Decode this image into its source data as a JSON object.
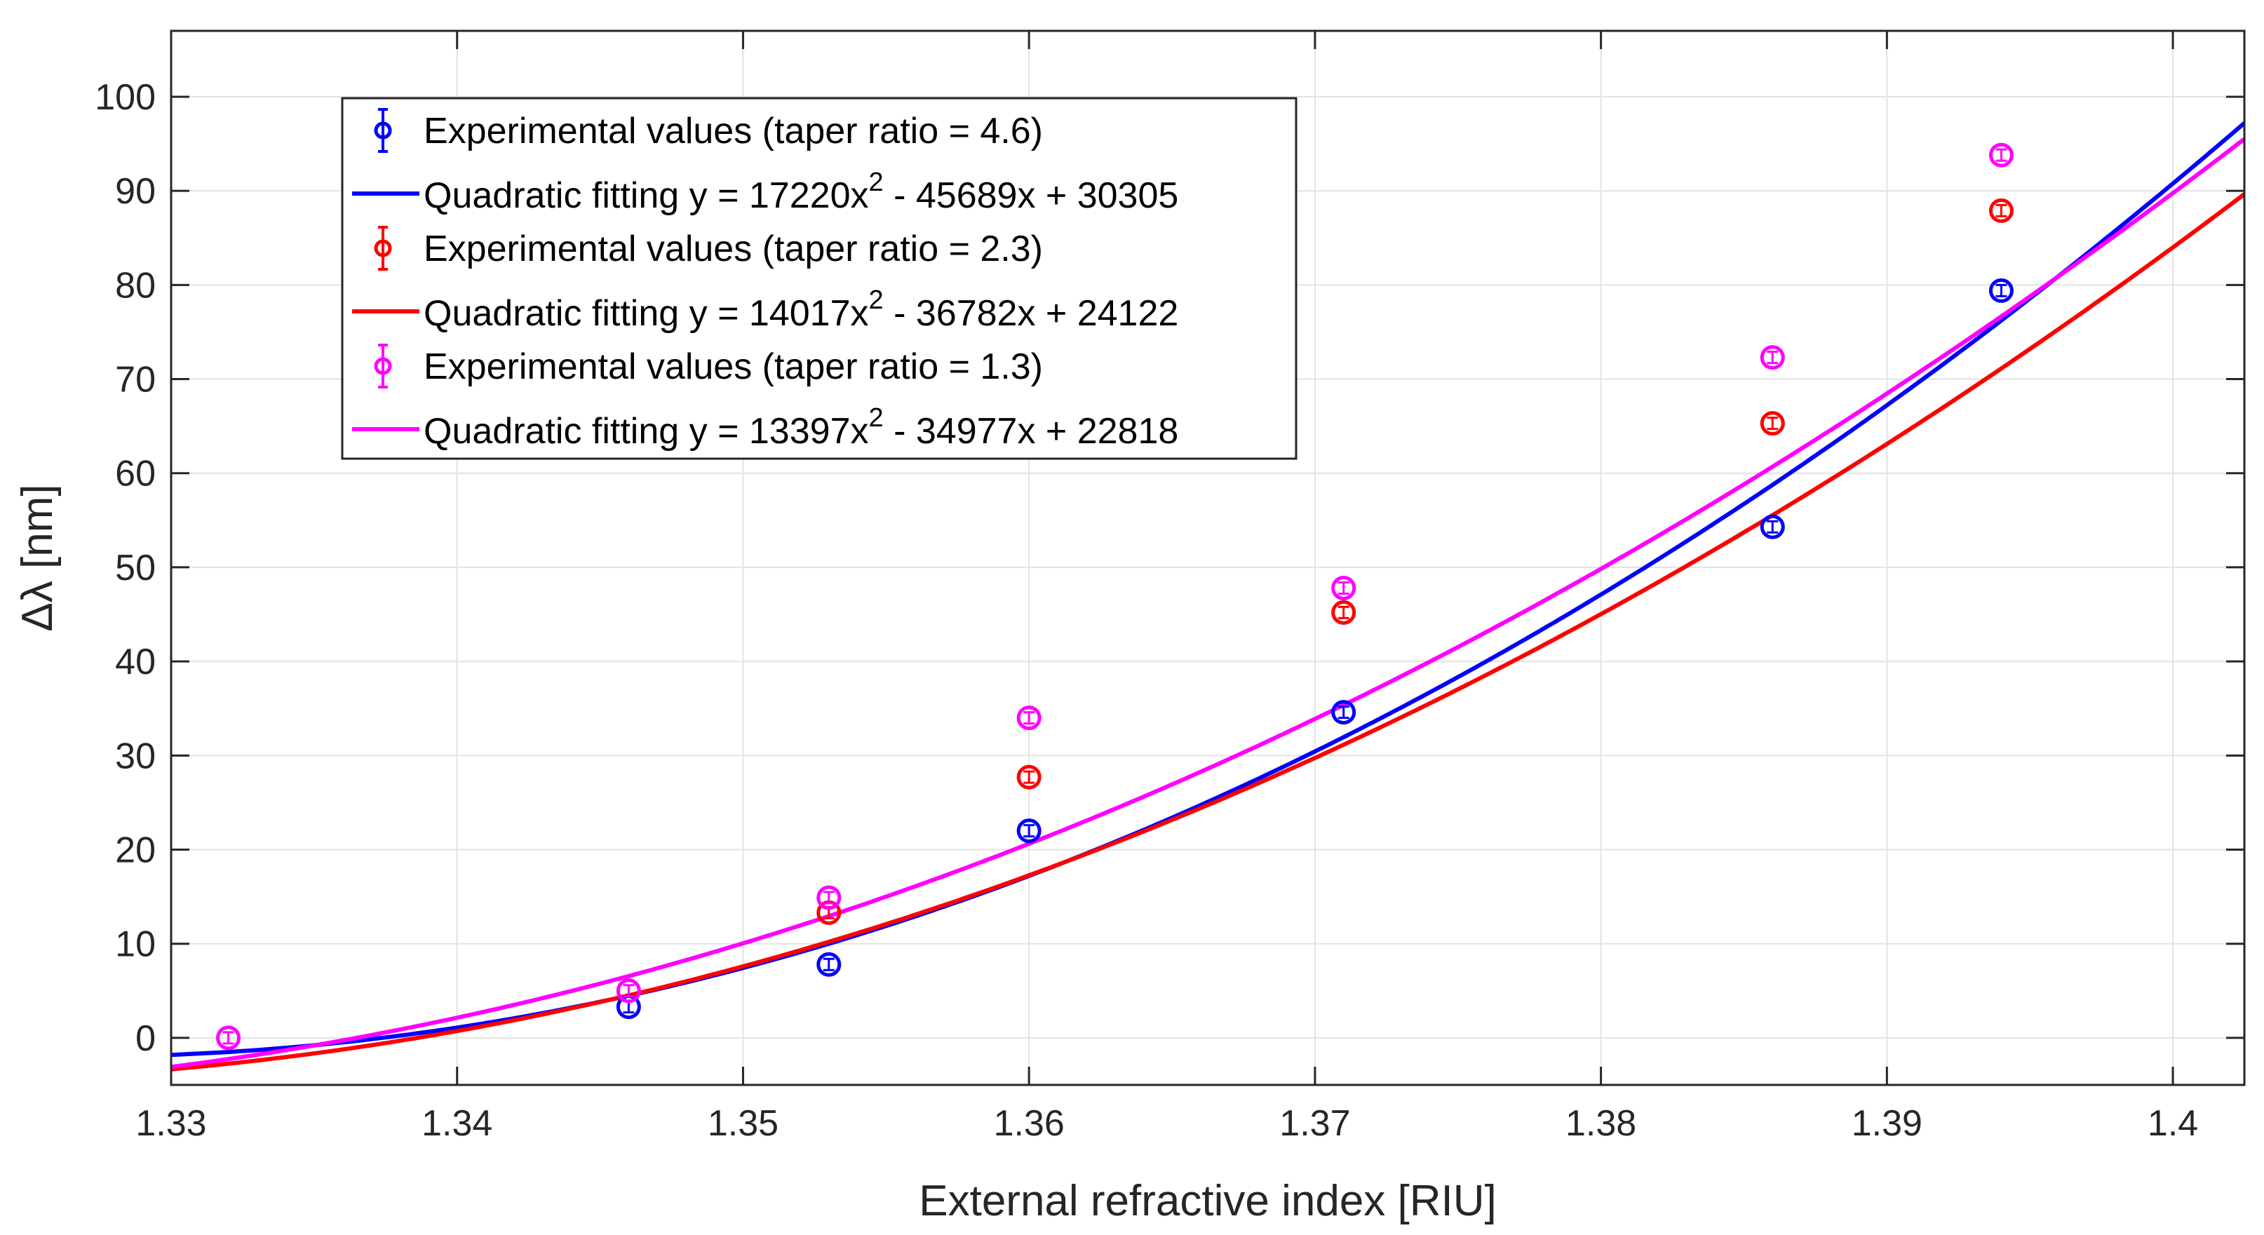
{
  "chart_data": {
    "type": "scatter",
    "title": "",
    "xlabel": "External refractive index [RIU]",
    "ylabel": "Δλ [nm]",
    "xlim": [
      1.33,
      1.4025
    ],
    "ylim": [
      -5,
      107
    ],
    "grid": true,
    "legend_position": "top-left",
    "x_ticks": [
      1.33,
      1.34,
      1.35,
      1.36,
      1.37,
      1.38,
      1.39,
      1.4
    ],
    "x_tick_labels": [
      "1.33",
      "1.34",
      "1.35",
      "1.36",
      "1.37",
      "1.38",
      "1.39",
      "1.4"
    ],
    "y_ticks": [
      0,
      10,
      20,
      30,
      40,
      50,
      60,
      70,
      80,
      90,
      100
    ],
    "y_tick_labels": [
      "0",
      "10",
      "20",
      "30",
      "40",
      "50",
      "60",
      "70",
      "80",
      "90",
      "100"
    ],
    "series": [
      {
        "name": "Experimental values (taper ratio = 4.6)",
        "kind": "points",
        "color": "#0000ff",
        "x": [
          1.346,
          1.353,
          1.36,
          1.371,
          1.386,
          1.394
        ],
        "y": [
          3.3,
          7.8,
          22.0,
          34.6,
          54.3,
          79.4
        ]
      },
      {
        "name": "Quadratic fitting y = 17220x^2 - 45689x + 30305",
        "legend_main": "Quadratic fitting y = 17220x",
        "legend_sup": "2",
        "legend_tail": " - 45689x + 30305",
        "kind": "quadratic",
        "color": "#0000ff",
        "vertex_x": 1.3266,
        "vertex_y": -2.0,
        "a": 17220
      },
      {
        "name": "Experimental values (taper ratio = 2.3)",
        "kind": "points",
        "color": "#ff0000",
        "x": [
          1.353,
          1.36,
          1.371,
          1.386,
          1.394
        ],
        "y": [
          13.3,
          27.7,
          45.2,
          65.3,
          87.9
        ]
      },
      {
        "name": "Quadratic fitting y = 14017x^2 - 36782x + 24122",
        "legend_main": "Quadratic fitting y = 14017x",
        "legend_sup": "2",
        "legend_tail": " - 36782x + 24122",
        "kind": "quadratic",
        "color": "#ff0000",
        "vertex_x": 1.3205,
        "vertex_y": -4.6,
        "a": 14017
      },
      {
        "name": "Experimental values (taper ratio = 1.3)",
        "kind": "points",
        "color": "#ff00ff",
        "x": [
          1.332,
          1.346,
          1.353,
          1.36,
          1.371,
          1.386,
          1.394
        ],
        "y": [
          0.0,
          5.0,
          14.9,
          34.0,
          47.8,
          72.3,
          93.8
        ]
      },
      {
        "name": "Quadratic fitting y = 13397x^2 - 34977x + 22818",
        "legend_main": "Quadratic fitting y = 13397x",
        "legend_sup": "2",
        "legend_tail": " - 34977x + 22818",
        "kind": "quadratic",
        "color": "#ff00ff",
        "vertex_x": 1.3155,
        "vertex_y": -5.9,
        "a": 13397
      }
    ]
  }
}
